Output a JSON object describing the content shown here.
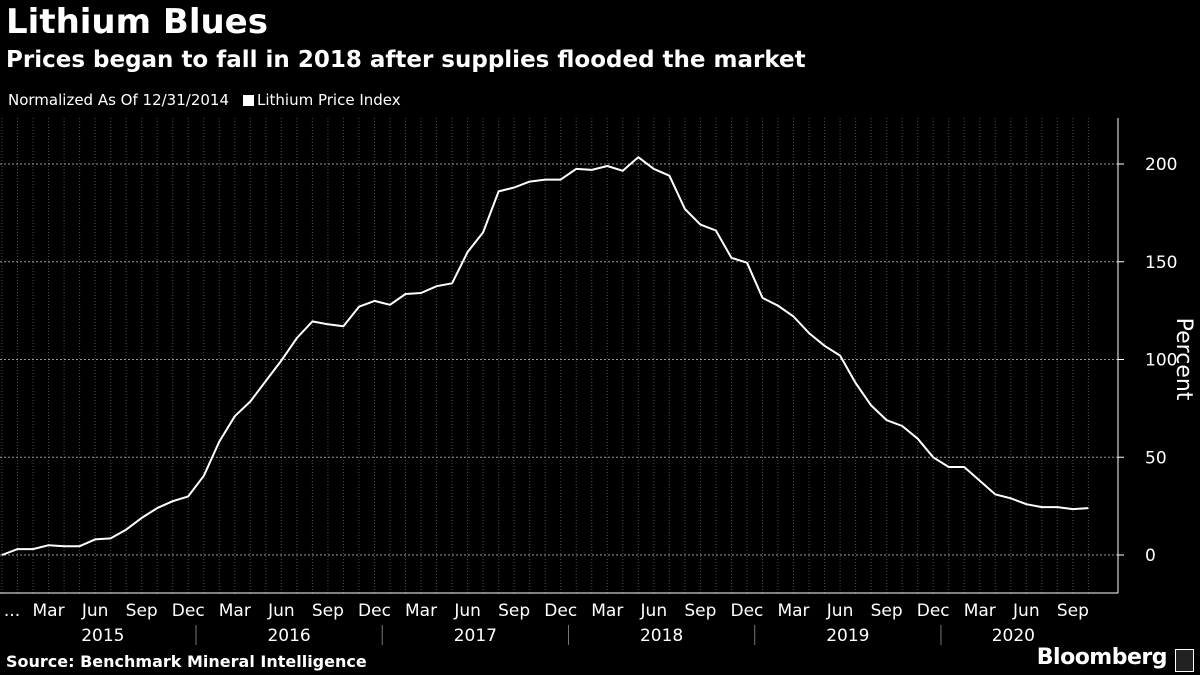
{
  "header": {
    "title": "Lithium Blues",
    "subtitle": "Prices began to fall in 2018 after supplies flooded the market"
  },
  "legend": {
    "note": "Normalized As Of 12/31/2014",
    "series_label": "Lithium Price Index"
  },
  "footer": {
    "source": "Source: Benchmark Mineral Intelligence",
    "brand": "Bloomberg"
  },
  "colors": {
    "background": "#000000",
    "line": "#ffffff",
    "grid": "#6e6e6e"
  },
  "chart_data": {
    "type": "line",
    "title": "Lithium Blues",
    "subtitle": "Prices began to fall in 2018 after supplies flooded the market",
    "ylabel": "Percent",
    "y_ticks": [
      0,
      50,
      100,
      150,
      200
    ],
    "ylim": [
      -20,
      222
    ],
    "y_axis_position": "right",
    "grid": true,
    "month_tick_labels": [
      "...",
      "Mar",
      "Jun",
      "Sep",
      "Dec",
      "Mar",
      "Jun",
      "Sep",
      "Dec",
      "Mar",
      "Jun",
      "Sep",
      "Dec",
      "Mar",
      "Jun",
      "Sep",
      "Dec",
      "Mar",
      "Jun",
      "Sep",
      "Dec",
      "Mar",
      "Jun",
      "Sep"
    ],
    "year_labels": [
      "2015",
      "2016",
      "2017",
      "2018",
      "2019",
      "2020"
    ],
    "series": [
      {
        "name": "Lithium Price Index",
        "x_start": "2014-12",
        "x_end": "2020-10",
        "frequency": "monthly",
        "values": [
          0,
          3,
          3,
          5,
          4.5,
          4.5,
          8,
          8.5,
          13,
          19,
          24,
          27.5,
          30,
          40.5,
          58,
          71,
          78.5,
          89,
          99.5,
          111,
          119.5,
          118,
          117,
          127,
          130,
          128,
          133.5,
          134,
          137.5,
          139,
          155,
          165,
          186,
          188,
          191,
          192,
          192,
          197.5,
          197,
          199,
          196.5,
          203.5,
          197.5,
          194,
          177,
          169,
          166,
          152,
          149.5,
          131.5,
          127.5,
          122,
          113.5,
          107,
          102,
          88,
          76.5,
          69,
          66,
          59.5,
          50,
          45,
          45,
          38,
          31,
          29,
          26,
          24.5,
          24.5,
          23.5,
          24
        ]
      }
    ]
  }
}
